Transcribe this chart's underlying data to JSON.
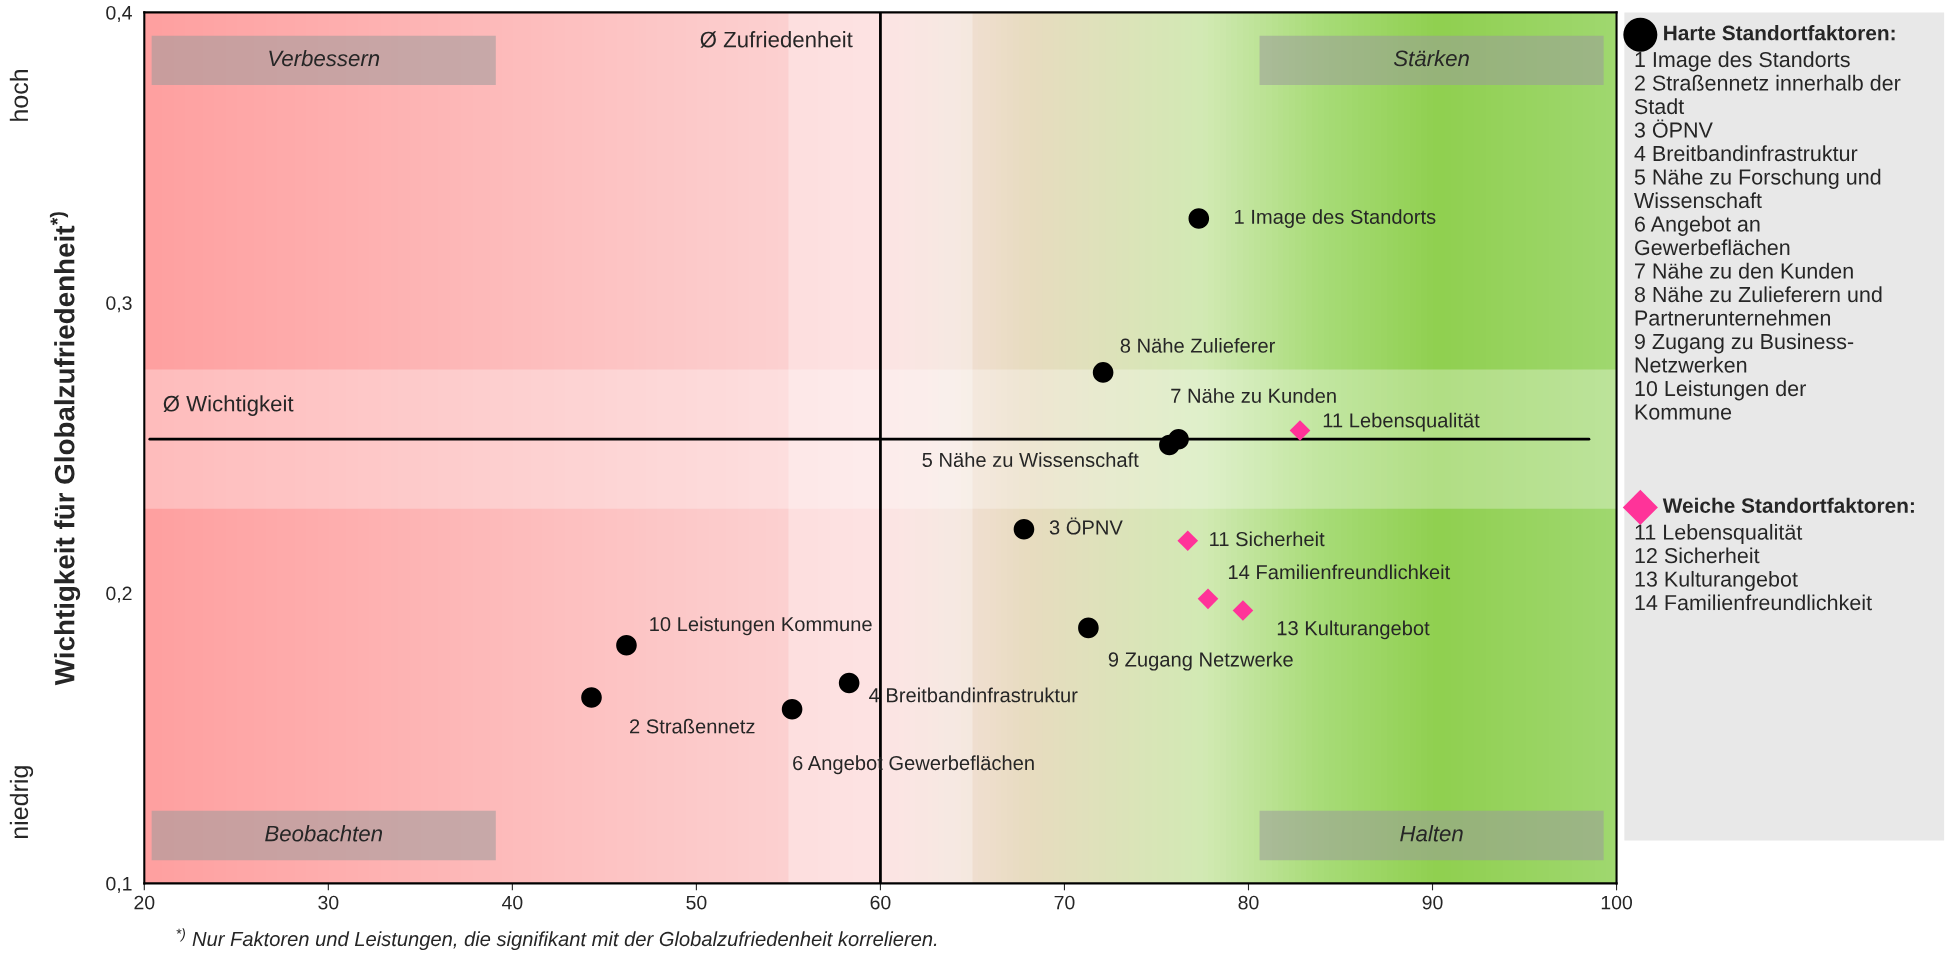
{
  "chart_data": {
    "type": "scatter",
    "xlabel": null,
    "ylabel": "Wichtigkeit für Globalzufriedenheit$^{*)}$",
    "xlim": [
      20,
      100
    ],
    "xticks": [
      20,
      30,
      40,
      50,
      60,
      70,
      80,
      90,
      100
    ],
    "ylim": [
      0.1,
      0.4
    ],
    "yticks": [
      {
        "value": 0.1,
        "label": "0,1"
      },
      {
        "value": 0.2,
        "label": "0,2"
      },
      {
        "value": 0.3,
        "label": "0,3"
      },
      {
        "value": 0.4,
        "label": "0,4"
      }
    ],
    "grid": false,
    "legend": "right",
    "series": [
      {
        "name": "Harte Standortfaktoren:",
        "color": "#000000",
        "marker": "circle",
        "x": [
          77.3,
          44.3,
          67.8,
          58.3,
          75.7,
          55.2,
          76.2,
          72.1,
          71.3,
          46.2
        ],
        "values": [
          0.329,
          0.164,
          0.222,
          0.169,
          0.251,
          0.16,
          0.253,
          0.276,
          0.188,
          0.182
        ]
      },
      {
        "name": "Weiche Standortfaktoren:",
        "color": "#ff3399",
        "marker": "diamond",
        "x": [
          82.8,
          76.7,
          79.7,
          77.8
        ],
        "values": [
          0.256,
          0.218,
          0.194,
          0.198
        ]
      }
    ],
    "ref_lines": [
      {
        "axis": "x",
        "value": 60,
        "label": "Ø Zufriedenheit",
        "color": "#000000"
      },
      {
        "axis": "y",
        "value": 0.253,
        "label": "Ø Wichtigkeit",
        "color": "#000000"
      }
    ],
    "bands": [
      {
        "axis": "y",
        "from": 0.229,
        "to": 0.277,
        "color": "#ffffff"
      },
      {
        "axis": "x",
        "from": 55,
        "to": 65,
        "color": "#ffffff"
      }
    ],
    "annotations": [
      "Verbessern",
      "Stärken",
      "Beobachten",
      "Halten",
      "hoch",
      "niedrig",
      "$^{*)}$ Nur Faktoren und Leistungen, die signifikant mit der Globalzufriedenheit korrelieren.",
      "1 Image des Standorts\n2 Straßennetz innerhalb der\nStadt\n3 ÖPNV\n4 Breitbandinfrastruktur\n5 Nähe zu Forschung und\nWissenschaft\n6 Angebot an\nGewerbeflächen\n7 Nähe zu den Kunden\n8 Nähe zu Zulieferern und\nPartnerunternehmen\n9 Zugang zu Business-\nNetzwerken\n10 Leistungen der\nKommune",
      "11 Lebensqualität\n12 Sicherheit\n13 Kulturangebot\n14 Familienfreundlichkeit",
      {
        "text": "1 Image des Standorts",
        "x": 77.3,
        "y": 0.329
      },
      {
        "text": "2 Straßennetz",
        "x": 44.3,
        "y": 0.164
      },
      {
        "text": "3 ÖPNV",
        "x": 67.8,
        "y": 0.222
      },
      {
        "text": "4 Breitbandinfrastruktur",
        "x": 58.3,
        "y": 0.169
      },
      {
        "text": "5 Nähe zu Wissenschaft",
        "x": 75.7,
        "y": 0.251
      },
      {
        "text": "6 Angebot Gewerbeflächen",
        "x": 55.2,
        "y": 0.16
      },
      {
        "text": "7 Nähe zu Kunden",
        "x": 76.2,
        "y": 0.253
      },
      {
        "text": "8 Nähe Zulieferer",
        "x": 72.1,
        "y": 0.276
      },
      {
        "text": "9 Zugang Netzwerke",
        "x": 71.3,
        "y": 0.188
      },
      {
        "text": "10 Leistungen Kommune",
        "x": 46.2,
        "y": 0.182
      },
      {
        "text": "11 Lebensqualität",
        "x": 82.8,
        "y": 0.256
      },
      {
        "text": "11 Sicherheit",
        "x": 76.7,
        "y": 0.218
      },
      {
        "text": "13 Kulturangebot",
        "x": 79.7,
        "y": 0.194
      },
      {
        "text": "14 Familienfreundlichkeit",
        "x": 77.8,
        "y": 0.198
      }
    ]
  }
}
